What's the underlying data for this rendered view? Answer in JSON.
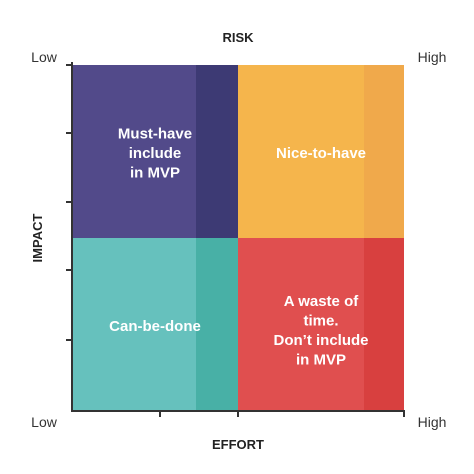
{
  "top_label": "RISK",
  "bottom_label": "EFFORT",
  "left_label": "IMPACT",
  "corners": {
    "top_left": "Low",
    "top_right": "High",
    "bottom_left": "Low",
    "bottom_right": "High"
  },
  "quadrants": [
    {
      "lines": [
        "Must-have",
        "include",
        "in MVP"
      ]
    },
    {
      "lines": [
        "Nice-to-have"
      ]
    },
    {
      "lines": [
        "Can-be-done"
      ]
    },
    {
      "lines": [
        "A waste of",
        "time.",
        "Don’t include",
        "in MVP"
      ]
    }
  ]
}
